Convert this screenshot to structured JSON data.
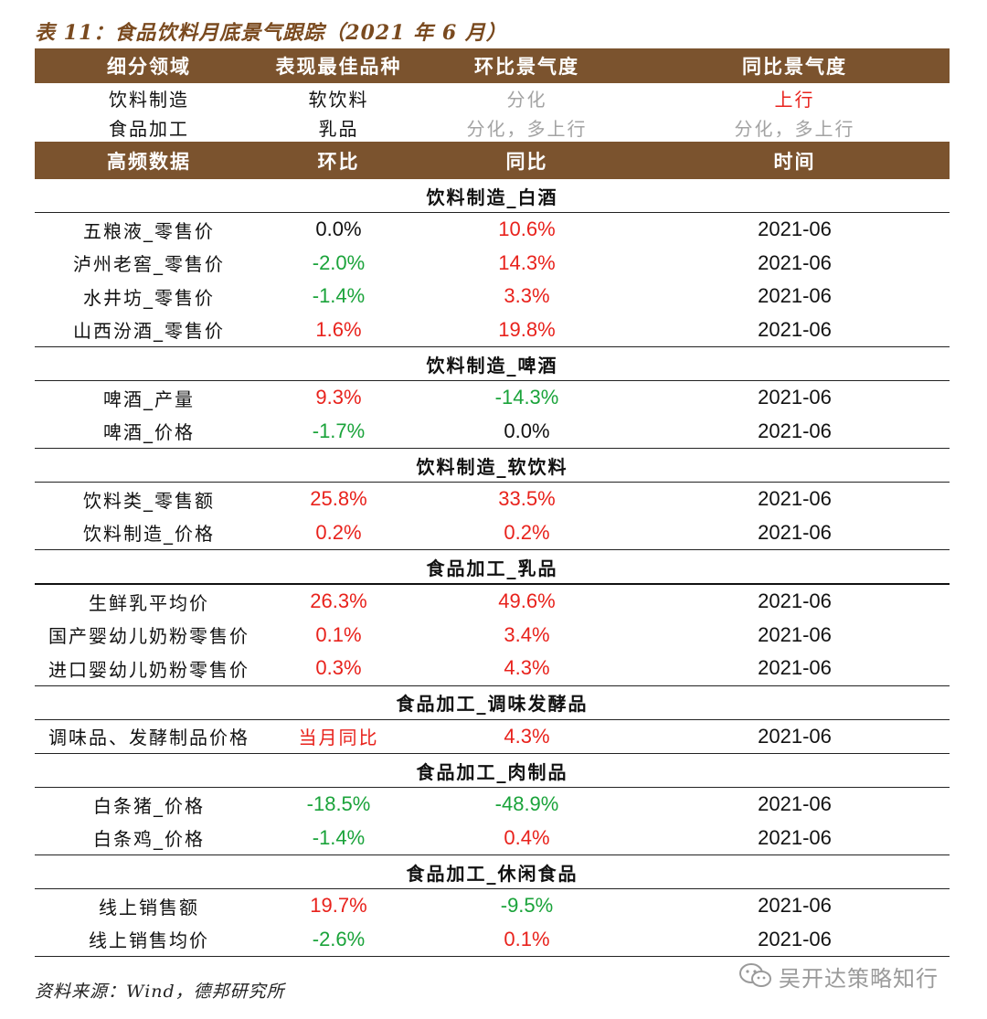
{
  "title": "表 11：食品饮料月底景气跟踪（2021 年 6 月）",
  "header1": [
    "细分领域",
    "表现最佳品种",
    "环比景气度",
    "同比景气度"
  ],
  "summary": [
    {
      "segment": "饮料制造",
      "best": "软饮料",
      "mom": "分化",
      "yoy": "上行"
    },
    {
      "segment": "食品加工",
      "best": "乳品",
      "mom": "分化，多上行",
      "yoy": "分化，多上行"
    }
  ],
  "header2": [
    "高频数据",
    "环比",
    "同比",
    "时间"
  ],
  "sections": [
    {
      "title": "饮料制造_白酒",
      "rows": [
        {
          "name": "五粮液_零售价",
          "mom": "0.0%",
          "yoy": "10.6%",
          "time": "2021-06"
        },
        {
          "name": "泸州老窖_零售价",
          "mom": "-2.0%",
          "yoy": "14.3%",
          "time": "2021-06"
        },
        {
          "name": "水井坊_零售价",
          "mom": "-1.4%",
          "yoy": "3.3%",
          "time": "2021-06"
        },
        {
          "name": "山西汾酒_零售价",
          "mom": "1.6%",
          "yoy": "19.8%",
          "time": "2021-06"
        }
      ]
    },
    {
      "title": "饮料制造_啤酒",
      "rows": [
        {
          "name": "啤酒_产量",
          "mom": "9.3%",
          "yoy": "-14.3%",
          "time": "2021-06"
        },
        {
          "name": "啤酒_价格",
          "mom": "-1.7%",
          "yoy": "0.0%",
          "time": "2021-06"
        }
      ]
    },
    {
      "title": "饮料制造_软饮料",
      "rows": [
        {
          "name": "饮料类_零售额",
          "mom": "25.8%",
          "yoy": "33.5%",
          "time": "2021-06"
        },
        {
          "name": "饮料制造_价格",
          "mom": "0.2%",
          "yoy": "0.2%",
          "time": "2021-06"
        }
      ]
    },
    {
      "title": "食品加工_乳品",
      "rows": [
        {
          "name": "生鲜乳平均价",
          "mom": "26.3%",
          "yoy": "49.6%",
          "time": "2021-06"
        },
        {
          "name": "国产婴幼儿奶粉零售价",
          "mom": "0.1%",
          "yoy": "3.4%",
          "time": "2021-06"
        },
        {
          "name": "进口婴幼儿奶粉零售价",
          "mom": "0.3%",
          "yoy": "4.3%",
          "time": "2021-06"
        }
      ]
    },
    {
      "title": "食品加工_调味发酵品",
      "rows": [
        {
          "name": "调味品、发酵制品价格",
          "mom": "当月同比",
          "yoy": "4.3%",
          "time": "2021-06"
        }
      ]
    },
    {
      "title": "食品加工_肉制品",
      "rows": [
        {
          "name": "白条猪_价格",
          "mom": "-18.5%",
          "yoy": "-48.9%",
          "time": "2021-06"
        },
        {
          "name": "白条鸡_价格",
          "mom": "-1.4%",
          "yoy": "0.4%",
          "time": "2021-06"
        }
      ]
    },
    {
      "title": "食品加工_休闲食品",
      "rows": [
        {
          "name": "线上销售额",
          "mom": "19.7%",
          "yoy": "-9.5%",
          "time": "2021-06"
        },
        {
          "name": "线上销售均价",
          "mom": "-2.6%",
          "yoy": "0.1%",
          "time": "2021-06"
        }
      ]
    }
  ],
  "source": "资料来源：Wind，德邦研究所",
  "watermark": "吴开达策略知行",
  "colors": {
    "header_bg": "#7b532e",
    "title": "#7a4a1f",
    "positive": "#e8221c",
    "negative": "#1aa33a",
    "neutral": "#a3a3a3"
  }
}
